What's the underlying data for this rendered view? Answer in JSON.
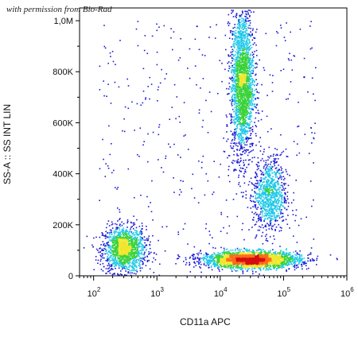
{
  "watermark": "with permission from Bio-Rad",
  "chart_data": {
    "type": "scatter",
    "title": "",
    "xlabel": "CD11a APC",
    "ylabel": "SS-A :: SS INT LIN",
    "x_scale": "log",
    "xlim": [
      60,
      1000000
    ],
    "ylim": [
      0,
      1050000
    ],
    "x_ticks": [
      {
        "value": 100,
        "base": "10",
        "exp": "2"
      },
      {
        "value": 1000,
        "base": "10",
        "exp": "3"
      },
      {
        "value": 10000,
        "base": "10",
        "exp": "4"
      },
      {
        "value": 100000,
        "base": "10",
        "exp": "5"
      },
      {
        "value": 1000000,
        "base": "10",
        "exp": "6"
      }
    ],
    "y_ticks": [
      {
        "value": 0,
        "label": "0"
      },
      {
        "value": 200000,
        "label": "200K"
      },
      {
        "value": 400000,
        "label": "400K"
      },
      {
        "value": 600000,
        "label": "600K"
      },
      {
        "value": 800000,
        "label": "800K"
      },
      {
        "value": 1000000,
        "label": "1,0M"
      }
    ],
    "grid": false,
    "populations": [
      {
        "center_x": 300,
        "center_y": 105000,
        "spread_log_x": 0.17,
        "spread_y": 45000,
        "count": 1400
      },
      {
        "center_x": 22000,
        "center_y": 760000,
        "spread_log_x": 0.09,
        "spread_y": 145000,
        "count": 2200
      },
      {
        "center_x": 30000,
        "center_y": 65000,
        "spread_log_x": 0.38,
        "spread_y": 16000,
        "count": 2600
      },
      {
        "center_x": 60000,
        "center_y": 320000,
        "spread_log_x": 0.13,
        "spread_y": 75000,
        "count": 900
      }
    ],
    "colors": [
      "#1a1ad6",
      "#1ec8e8",
      "#3ad23a",
      "#f0e62a",
      "#ff6a1a",
      "#d40f0f"
    ]
  }
}
